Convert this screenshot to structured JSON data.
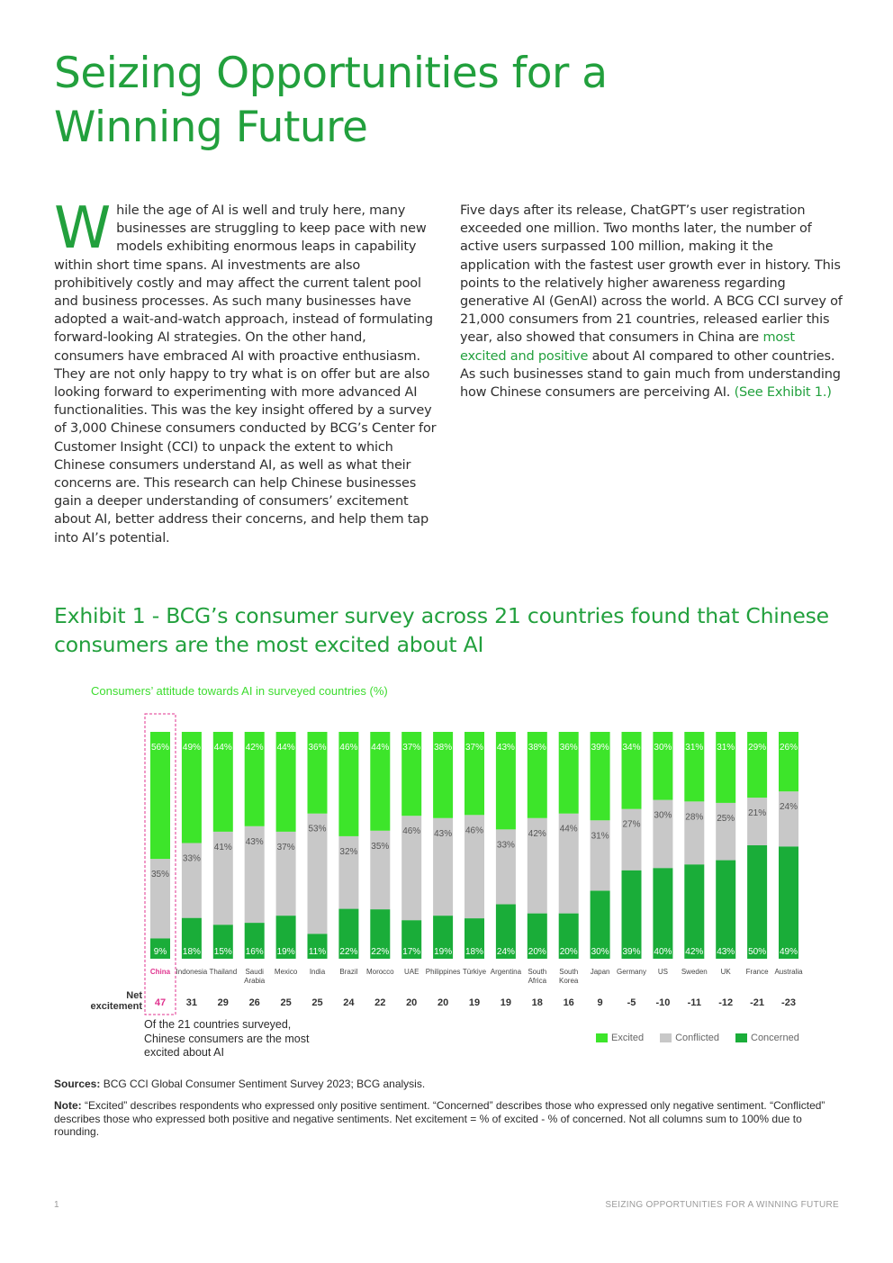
{
  "title": "Seizing Opportunities for a Winning Future",
  "intro": {
    "dropcap": "W",
    "left_text": "hile the age of AI is well and truly here, many businesses are struggling to keep pace with new models exhibiting enormous leaps in capability within short time spans. AI investments are also prohibitively costly and may affect the current talent pool and business processes. As such many businesses have adopted a wait-and-watch approach, instead of formulating forward-looking AI strategies. On the other hand, consumers have embraced AI with proactive enthusiasm. They are not only happy to try what is on offer but are also looking forward to experimenting with more advanced AI functionalities. This was the key insight offered by a survey of 3,000 Chinese consumers conducted by BCG’s Center for Customer Insight (CCI) to unpack the extent to which Chinese consumers understand AI, as well as what their concerns are. This research can help Chinese businesses gain a deeper understanding of consumers’ excitement about AI, better address their concerns, and help them tap into AI’s potential.",
    "right_text_1": "Five days after its release, ChatGPT’s user registration exceeded one million. Two months later, the number of active users surpassed 100 million, making it the application with the fastest user growth ever in history. This points to the relatively higher awareness regarding generative AI (GenAI) across the world. A BCG CCI survey of 21,000 consumers from 21 countries, released earlier this year, also showed that consumers in China are ",
    "right_link_1": "most excited and positive",
    "right_text_2": " about AI compared to other countries. As such businesses stand to gain much from understanding how Chinese consumers are perceiving AI. ",
    "right_link_2": "(See Exhibit 1.)"
  },
  "exhibit": {
    "title": "Exhibit 1 - BCG’s consumer survey across 21 countries found that Chinese consumers are the most excited about AI",
    "subtitle": "Consumers’ attitude towards AI in surveyed countries (%)",
    "net_label": "Net excitement",
    "china_note": "Of the 21 countries surveyed, Chinese consumers are the most excited about AI"
  },
  "chart_data": {
    "type": "bar",
    "stacked": true,
    "categories": [
      "China",
      "Indonesia",
      "Thailand",
      "Saudi Arabia",
      "Mexico",
      "India",
      "Brazil",
      "Morocco",
      "UAE",
      "Philippines",
      "Türkiye",
      "Argentina",
      "South Africa",
      "South Korea",
      "Japan",
      "Germany",
      "US",
      "Sweden",
      "UK",
      "France",
      "Australia"
    ],
    "series": [
      {
        "name": "Concerned",
        "color": "#1aad39",
        "values": [
          9,
          18,
          15,
          16,
          19,
          11,
          22,
          22,
          17,
          19,
          18,
          24,
          20,
          20,
          30,
          39,
          40,
          42,
          43,
          50,
          49
        ]
      },
      {
        "name": "Conflicted",
        "color": "#c8c8c8",
        "values": [
          35,
          33,
          41,
          43,
          37,
          53,
          32,
          35,
          46,
          43,
          46,
          33,
          42,
          44,
          31,
          27,
          30,
          28,
          25,
          21,
          24
        ]
      },
      {
        "name": "Excited",
        "color": "#3de52a",
        "values": [
          56,
          49,
          44,
          42,
          44,
          36,
          46,
          44,
          37,
          38,
          37,
          43,
          38,
          36,
          39,
          34,
          30,
          31,
          31,
          29,
          26
        ]
      }
    ],
    "net_excitement": [
      47,
      31,
      29,
      26,
      25,
      25,
      24,
      22,
      20,
      20,
      19,
      19,
      18,
      16,
      9,
      -5,
      -10,
      -11,
      -12,
      -21,
      -23
    ],
    "highlight": "China",
    "highlight_color": "#e0338f",
    "legend": [
      "Excited",
      "Conflicted",
      "Concerned"
    ],
    "legend_placement": "bottom-right"
  },
  "sources": {
    "label": "Sources:",
    "text": " BCG CCI Global Consumer Sentiment Survey 2023; BCG analysis."
  },
  "note": {
    "label": "Note:",
    "text": " “Excited” describes respondents who expressed only positive sentiment. “Concerned” describes those who expressed only negative sentiment. “Conflicted” describes those who expressed both positive and negative sentiments. Net excitement  = % of excited - % of concerned. Not all columns sum to 100% due to rounding."
  },
  "footer": {
    "page_number": "1",
    "running_head": "SEIZING OPPORTUNITIES FOR A WINNING FUTURE"
  }
}
